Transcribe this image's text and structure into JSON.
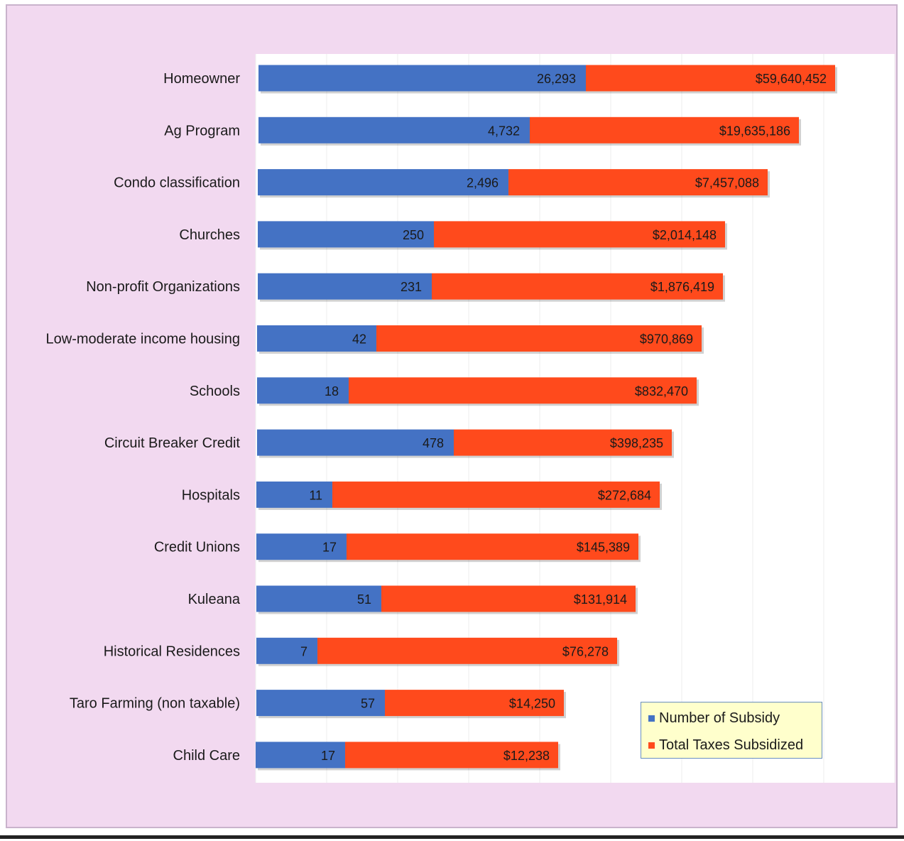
{
  "chart_data": {
    "type": "bar",
    "orientation": "horizontal",
    "stacked": true,
    "categories": [
      "Homeowner",
      "Ag Program",
      "Condo classification",
      "Churches",
      "Non-profit Organizations",
      "Low-moderate income housing",
      "Schools",
      "Circuit Breaker Credit",
      "Hospitals",
      "Credit Unions",
      "Kuleana",
      "Historical Residences",
      "Taro Farming (non taxable)",
      "Child Care"
    ],
    "series": [
      {
        "name": "Number of Subsidy",
        "color": "#4472c4",
        "values": [
          26293,
          4732,
          2496,
          250,
          231,
          42,
          18,
          478,
          11,
          17,
          51,
          7,
          57,
          17
        ],
        "labels": [
          "26,293",
          "4,732",
          "2,496",
          "250",
          "231",
          "42",
          "18",
          "478",
          "11",
          "17",
          "51",
          "7",
          "57",
          "17"
        ]
      },
      {
        "name": "Total Taxes Subsidized",
        "color": "#ff4a1c",
        "values": [
          59640452,
          19635186,
          7457088,
          2014148,
          1876419,
          970869,
          832470,
          398235,
          272684,
          145389,
          131914,
          76278,
          14250,
          12238
        ],
        "labels": [
          "$59,640,452",
          "$19,635,186",
          "$7,457,088",
          "$2,014,148",
          "$1,876,419",
          "$970,869",
          "$832,470",
          "$398,235",
          "$272,684",
          "$145,389",
          "$131,914",
          "$76,278",
          "$14,250",
          "$12,238"
        ]
      }
    ],
    "legend_position": "bottom-right",
    "grid": true,
    "x_scale": "nonlinear (as drawn)"
  }
}
